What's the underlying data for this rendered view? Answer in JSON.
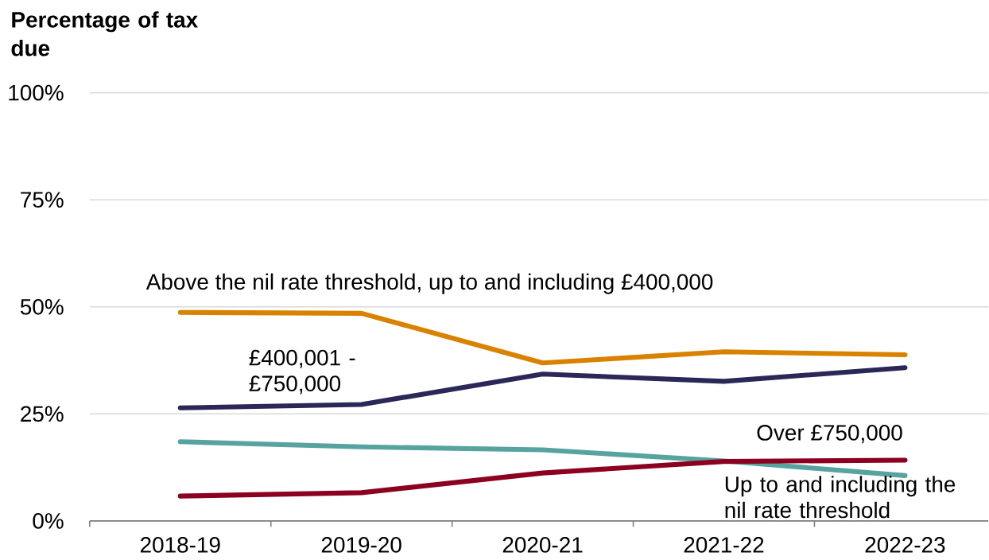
{
  "chart_data": {
    "type": "line",
    "ylabel": "Percentage of tax due",
    "categories": [
      "2018-19",
      "2019-20",
      "2020-21",
      "2021-22",
      "2022-23"
    ],
    "series": [
      {
        "name": "Above the nil rate threshold, up to and including £400,000",
        "color": "#d98200",
        "values": [
          48.7,
          48.5,
          36.9,
          39.5,
          38.8
        ]
      },
      {
        "name": "£400,001 - £750,000",
        "color": "#2b2859",
        "values": [
          26.4,
          27.2,
          34.3,
          32.6,
          35.8
        ]
      },
      {
        "name": "Up to and including the nil rate threshold",
        "color": "#56a3a0",
        "values": [
          18.5,
          17.3,
          16.6,
          14.0,
          10.6
        ]
      },
      {
        "name": "Over £750,000",
        "color": "#8c0020",
        "values": [
          5.8,
          6.6,
          11.2,
          13.9,
          14.2
        ]
      }
    ],
    "ylim": [
      0,
      100
    ],
    "yticks": [
      {
        "value": 0,
        "label": "0%"
      },
      {
        "value": 25,
        "label": "25%"
      },
      {
        "value": 50,
        "label": "50%"
      },
      {
        "value": 75,
        "label": "75%"
      },
      {
        "value": 100,
        "label": "100%"
      }
    ],
    "grid": "y",
    "marker": "none",
    "line_style": "solid"
  }
}
